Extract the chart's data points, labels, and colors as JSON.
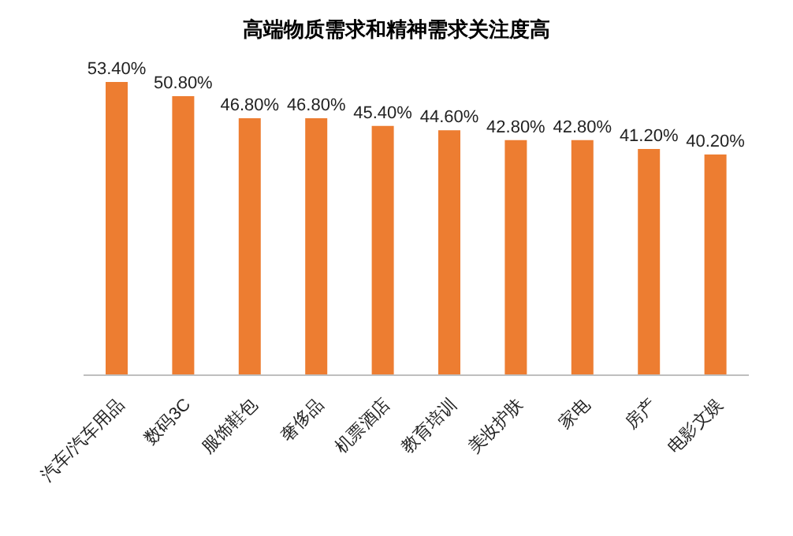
{
  "chart_data": {
    "type": "bar",
    "title": "高端物质需求和精神需求关注度高",
    "categories": [
      "汽车/汽车用品",
      "数码3C",
      "服饰鞋包",
      "奢侈品",
      "机票酒店",
      "教育培训",
      "美妆护肤",
      "家电",
      "房产",
      "电影文娱"
    ],
    "values": [
      53.4,
      50.8,
      46.8,
      46.8,
      45.4,
      44.6,
      42.8,
      42.8,
      41.2,
      40.2
    ],
    "value_labels": [
      "53.40%",
      "50.80%",
      "46.80%",
      "46.80%",
      "45.40%",
      "44.60%",
      "42.80%",
      "42.80%",
      "41.20%",
      "40.20%"
    ],
    "color": "#ed7d31"
  }
}
